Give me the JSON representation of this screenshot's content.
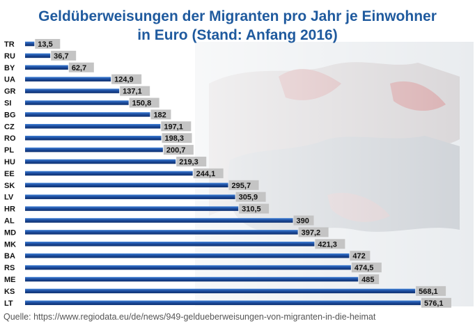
{
  "title": {
    "line1": "Geldüberweisungen der Migranten pro Jahr je Einwohner",
    "line2": "in Euro (Stand: Anfang 2016)"
  },
  "source": "Quelle: https://www.regiodata.eu/de/news/949-geldueberweisungen-von-migranten-in-die-heimat",
  "colors": {
    "title": "#1f5a9e",
    "bar_dark": "#0d2f6e",
    "bar_light": "#3d7fd6",
    "label_bg": "#c4c4c4"
  },
  "chart_data": {
    "type": "bar",
    "orientation": "horizontal",
    "title": "Geldüberweisungen der Migranten pro Jahr je Einwohner in Euro (Stand: Anfang 2016)",
    "xlabel": "",
    "ylabel": "",
    "xlim": [
      0,
      576.1
    ],
    "grid": false,
    "categories": [
      "TR",
      "RU",
      "BY",
      "UA",
      "GR",
      "SI",
      "BG",
      "CZ",
      "RO",
      "PL",
      "HU",
      "EE",
      "SK",
      "LV",
      "HR",
      "AL",
      "MD",
      "MK",
      "BA",
      "RS",
      "ME",
      "KS",
      "LT"
    ],
    "values": [
      13.5,
      36.7,
      62.7,
      124.9,
      137.1,
      150.8,
      182,
      197.1,
      198.3,
      200.7,
      219.3,
      244.1,
      295.7,
      305.9,
      310.5,
      390,
      397.2,
      421.3,
      472,
      474.5,
      485,
      568.1,
      576.1
    ],
    "value_labels": [
      "13,5",
      "36,7",
      "62,7",
      "124,9",
      "137,1",
      "150,8",
      "182",
      "197,1",
      "198,3",
      "200,7",
      "219,3",
      "244,1",
      "295,7",
      "305,9",
      "310,5",
      "390",
      "397,2",
      "421,3",
      "472",
      "474,5",
      "485",
      "568,1",
      "576,1"
    ]
  }
}
